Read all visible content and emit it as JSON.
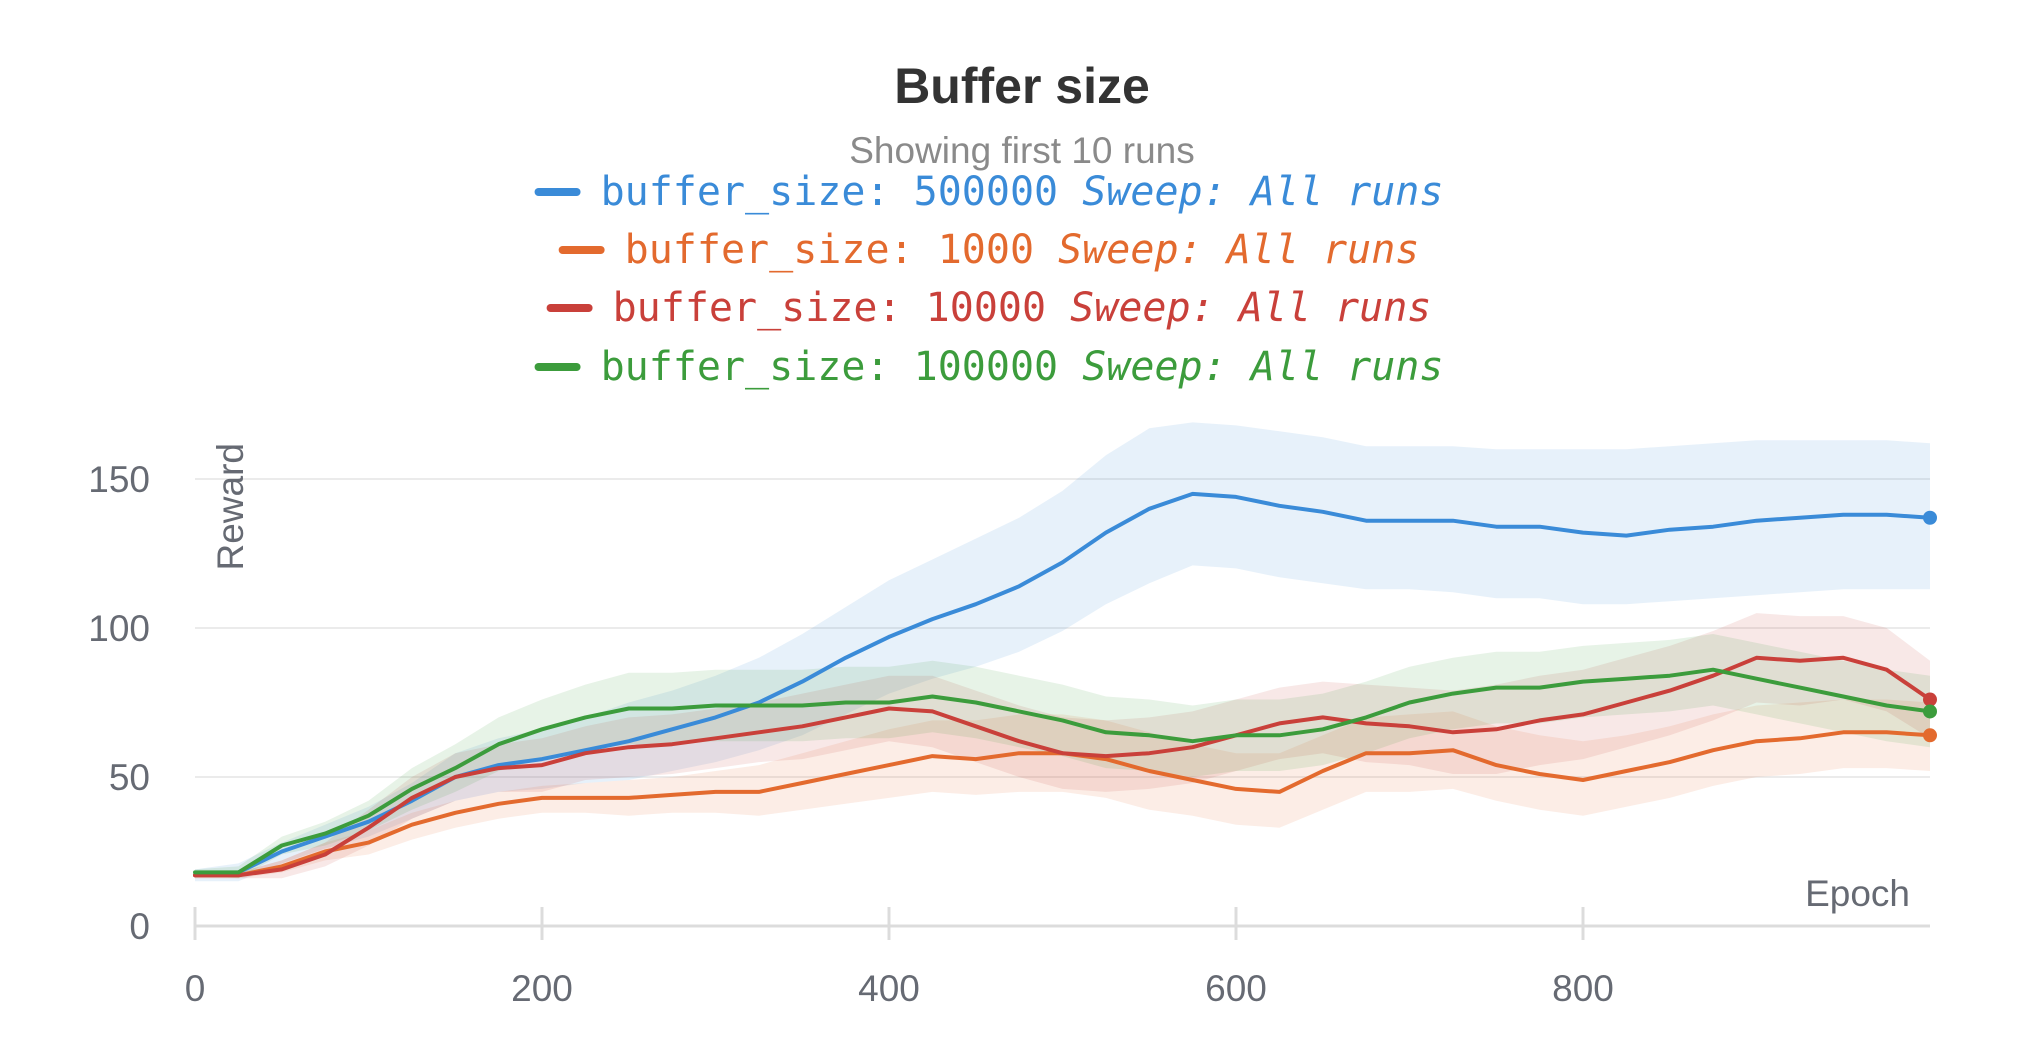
{
  "chart_data": {
    "type": "line",
    "title": "Buffer size",
    "subtitle": "Showing first 10 runs",
    "xlabel": "Epoch",
    "ylabel": "Reward",
    "xlim": [
      0,
      1000
    ],
    "ylim": [
      0,
      170
    ],
    "x_ticks": [
      "0",
      "200",
      "400",
      "600",
      "800"
    ],
    "y_ticks": [
      "0",
      "50",
      "100",
      "150"
    ],
    "grid": true,
    "legend_placement": "top-center",
    "x": [
      0,
      25,
      50,
      75,
      100,
      125,
      150,
      175,
      200,
      225,
      250,
      275,
      300,
      325,
      350,
      375,
      400,
      425,
      450,
      475,
      500,
      525,
      550,
      575,
      600,
      625,
      650,
      675,
      700,
      725,
      750,
      775,
      800,
      825,
      850,
      875,
      900,
      925,
      950,
      975,
      1000
    ],
    "series": [
      {
        "name": "buffer_size: 500000",
        "group": "Sweep: All runs",
        "color": "#3a8bd8",
        "values": [
          17,
          18,
          25,
          30,
          35,
          42,
          50,
          54,
          56,
          59,
          62,
          66,
          70,
          75,
          82,
          90,
          97,
          103,
          108,
          114,
          122,
          132,
          140,
          145,
          144,
          141,
          139,
          136,
          136,
          136,
          134,
          134,
          132,
          131,
          133,
          134,
          136,
          137,
          138,
          138,
          137
        ],
        "upper": [
          19,
          21,
          28,
          34,
          40,
          48,
          58,
          63,
          66,
          70,
          75,
          79,
          84,
          90,
          98,
          107,
          116,
          123,
          130,
          137,
          146,
          158,
          167,
          169,
          168,
          166,
          164,
          161,
          161,
          161,
          160,
          160,
          160,
          160,
          161,
          162,
          163,
          163,
          163,
          163,
          162
        ],
        "lower": [
          15,
          15,
          21,
          26,
          30,
          36,
          42,
          45,
          46,
          48,
          49,
          52,
          55,
          59,
          64,
          71,
          78,
          83,
          87,
          92,
          99,
          108,
          115,
          121,
          120,
          117,
          115,
          113,
          113,
          112,
          110,
          110,
          108,
          108,
          109,
          110,
          111,
          112,
          113,
          113,
          113
        ]
      },
      {
        "name": "buffer_size: 1000",
        "group": "Sweep: All runs",
        "color": "#e36a2e",
        "values": [
          17,
          17,
          20,
          25,
          28,
          34,
          38,
          41,
          43,
          43,
          43,
          44,
          45,
          45,
          48,
          51,
          54,
          57,
          56,
          58,
          58,
          56,
          52,
          49,
          46,
          45,
          52,
          58,
          58,
          59,
          54,
          51,
          49,
          52,
          55,
          59,
          62,
          63,
          65,
          65,
          64
        ],
        "upper": [
          18,
          18,
          22,
          28,
          32,
          38,
          42,
          45,
          47,
          48,
          49,
          50,
          52,
          54,
          58,
          62,
          66,
          69,
          69,
          71,
          71,
          69,
          65,
          61,
          58,
          58,
          64,
          70,
          71,
          72,
          67,
          64,
          62,
          64,
          67,
          71,
          74,
          75,
          76,
          76,
          75
        ],
        "lower": [
          16,
          16,
          18,
          22,
          24,
          29,
          33,
          36,
          38,
          38,
          37,
          38,
          38,
          37,
          39,
          41,
          43,
          45,
          44,
          45,
          45,
          43,
          39,
          37,
          34,
          33,
          39,
          45,
          45,
          46,
          42,
          39,
          37,
          40,
          43,
          47,
          50,
          51,
          53,
          53,
          52
        ]
      },
      {
        "name": "buffer_size: 10000",
        "group": "Sweep: All runs",
        "color": "#c9403a",
        "values": [
          17,
          17,
          19,
          24,
          33,
          43,
          50,
          53,
          54,
          58,
          60,
          61,
          63,
          65,
          67,
          70,
          73,
          72,
          67,
          62,
          58,
          57,
          58,
          60,
          64,
          68,
          70,
          68,
          67,
          65,
          66,
          69,
          71,
          75,
          79,
          84,
          90,
          89,
          90,
          86,
          76
        ],
        "upper": [
          18,
          18,
          22,
          28,
          39,
          50,
          58,
          61,
          63,
          67,
          70,
          71,
          73,
          75,
          78,
          81,
          84,
          84,
          79,
          74,
          70,
          69,
          70,
          72,
          76,
          80,
          82,
          81,
          80,
          79,
          81,
          84,
          86,
          90,
          94,
          99,
          105,
          104,
          104,
          100,
          89
        ],
        "lower": [
          16,
          16,
          16,
          20,
          27,
          36,
          42,
          45,
          45,
          49,
          50,
          51,
          53,
          55,
          56,
          59,
          62,
          60,
          55,
          50,
          46,
          45,
          46,
          48,
          52,
          56,
          58,
          55,
          54,
          51,
          51,
          54,
          56,
          60,
          64,
          69,
          75,
          74,
          76,
          72,
          63
        ]
      },
      {
        "name": "buffer_size: 100000",
        "group": "Sweep: All runs",
        "color": "#3c9c3c",
        "values": [
          18,
          18,
          27,
          31,
          37,
          46,
          53,
          61,
          66,
          70,
          73,
          73,
          74,
          74,
          74,
          75,
          75,
          77,
          75,
          72,
          69,
          65,
          64,
          62,
          64,
          64,
          66,
          70,
          75,
          78,
          80,
          80,
          82,
          83,
          84,
          86,
          83,
          80,
          77,
          74,
          72
        ],
        "upper": [
          19,
          20,
          30,
          35,
          42,
          53,
          61,
          70,
          76,
          81,
          85,
          85,
          86,
          86,
          86,
          87,
          87,
          89,
          87,
          84,
          81,
          77,
          76,
          74,
          76,
          76,
          78,
          82,
          87,
          90,
          92,
          92,
          94,
          95,
          96,
          98,
          95,
          92,
          89,
          86,
          84
        ],
        "lower": [
          17,
          16,
          24,
          27,
          32,
          39,
          45,
          52,
          56,
          59,
          61,
          61,
          62,
          62,
          62,
          63,
          63,
          65,
          63,
          60,
          57,
          53,
          52,
          50,
          52,
          52,
          54,
          58,
          63,
          66,
          68,
          68,
          70,
          71,
          72,
          74,
          71,
          68,
          65,
          62,
          60
        ]
      }
    ]
  }
}
